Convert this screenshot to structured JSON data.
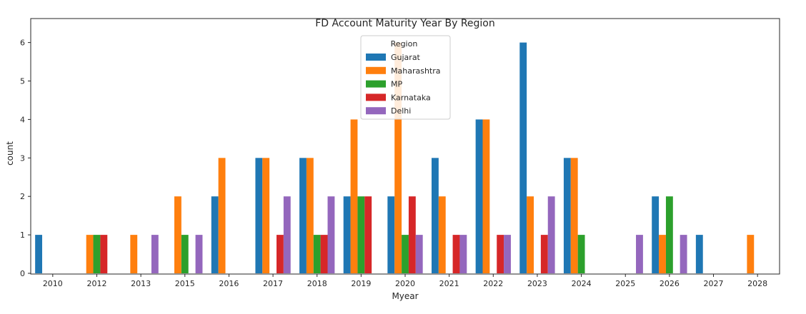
{
  "chart_data": {
    "type": "bar",
    "title": "FD Account Maturity Year By Region",
    "xlabel": "Myear",
    "ylabel": "count",
    "ylim": [
      0,
      6.3
    ],
    "yticks": [
      0,
      1,
      2,
      3,
      4,
      5,
      6
    ],
    "categories": [
      "2010",
      "2012",
      "2013",
      "2015",
      "2016",
      "2017",
      "2018",
      "2019",
      "2020",
      "2021",
      "2022",
      "2023",
      "2024",
      "2025",
      "2026",
      "2027",
      "2028"
    ],
    "legend": {
      "title": "Region",
      "placement": "top-center"
    },
    "series": [
      {
        "name": "Gujarat",
        "color": "#1f77b4",
        "values": [
          1,
          0,
          0,
          0,
          2,
          3,
          3,
          2,
          2,
          3,
          4,
          6,
          3,
          0,
          2,
          1,
          0
        ]
      },
      {
        "name": "Maharashtra",
        "color": "#ff7f0e",
        "values": [
          0,
          1,
          1,
          2,
          3,
          3,
          3,
          4,
          6,
          2,
          4,
          2,
          3,
          0,
          1,
          0,
          1
        ]
      },
      {
        "name": "MP",
        "color": "#2ca02c",
        "values": [
          0,
          1,
          0,
          1,
          0,
          0,
          1,
          2,
          1,
          0,
          0,
          0,
          1,
          0,
          2,
          0,
          0
        ]
      },
      {
        "name": "Karnataka",
        "color": "#d62728",
        "values": [
          0,
          1,
          0,
          0,
          0,
          1,
          1,
          2,
          2,
          1,
          1,
          1,
          0,
          0,
          0,
          0,
          0
        ]
      },
      {
        "name": "Delhi",
        "color": "#9467bd",
        "values": [
          0,
          0,
          1,
          1,
          0,
          2,
          2,
          0,
          1,
          1,
          1,
          2,
          0,
          1,
          1,
          0,
          0
        ]
      }
    ],
    "grid": false
  }
}
